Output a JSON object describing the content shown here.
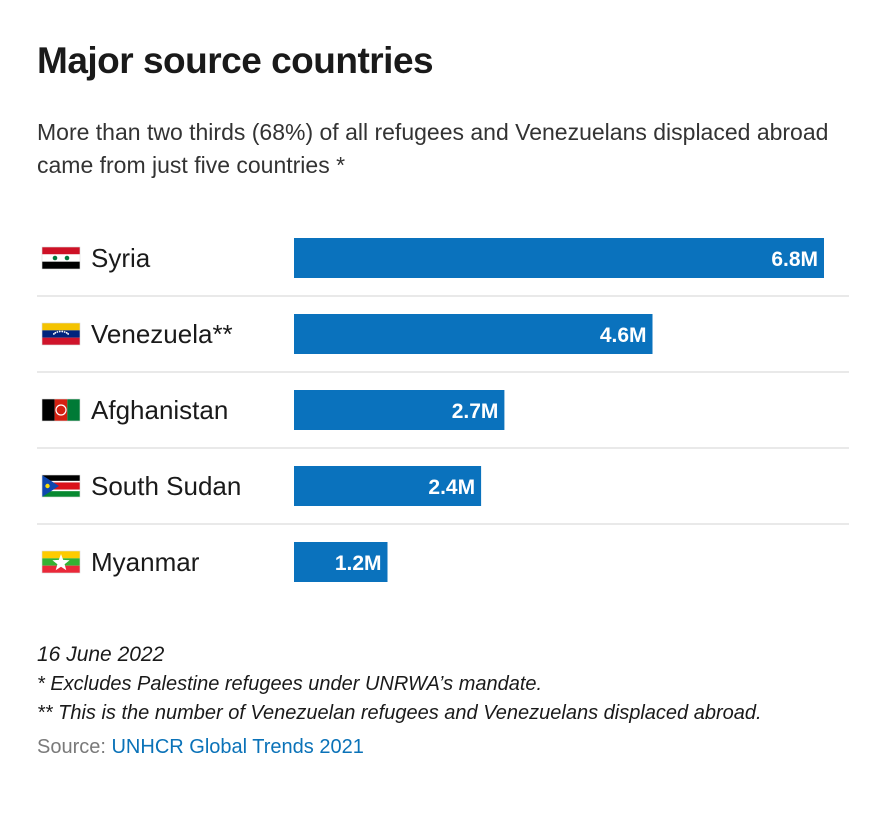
{
  "header": {
    "title": "Major source countries",
    "subtitle": "More than two thirds (68%) of all refugees and Venezuelans displaced abroad came from just five countries *"
  },
  "colors": {
    "bar": "#0a72bd",
    "divider": "#e2e2e2",
    "link": "#0a72b8"
  },
  "chart_data": {
    "type": "bar",
    "orientation": "horizontal",
    "unit": "millions",
    "categories": [
      "Syria",
      "Venezuela**",
      "Afghanistan",
      "South Sudan",
      "Myanmar"
    ],
    "values": [
      6.8,
      4.6,
      2.7,
      2.4,
      1.2
    ],
    "value_labels": [
      "6.8M",
      "4.6M",
      "2.7M",
      "2.4M",
      "1.2M"
    ],
    "flags": [
      "flag-syria-icon",
      "flag-venezuela-icon",
      "flag-afghanistan-icon",
      "flag-south-sudan-icon",
      "flag-myanmar-icon"
    ],
    "xlim": [
      0,
      6.8
    ],
    "grid": false
  },
  "footer": {
    "date": "16 June 2022",
    "note1": "* Excludes Palestine refugees under UNRWA’s mandate.",
    "note2": "** This is the number of Venezuelan refugees and Venezuelans displaced abroad.",
    "source_label": "Source: ",
    "source_link": "UNHCR Global Trends 2021"
  }
}
